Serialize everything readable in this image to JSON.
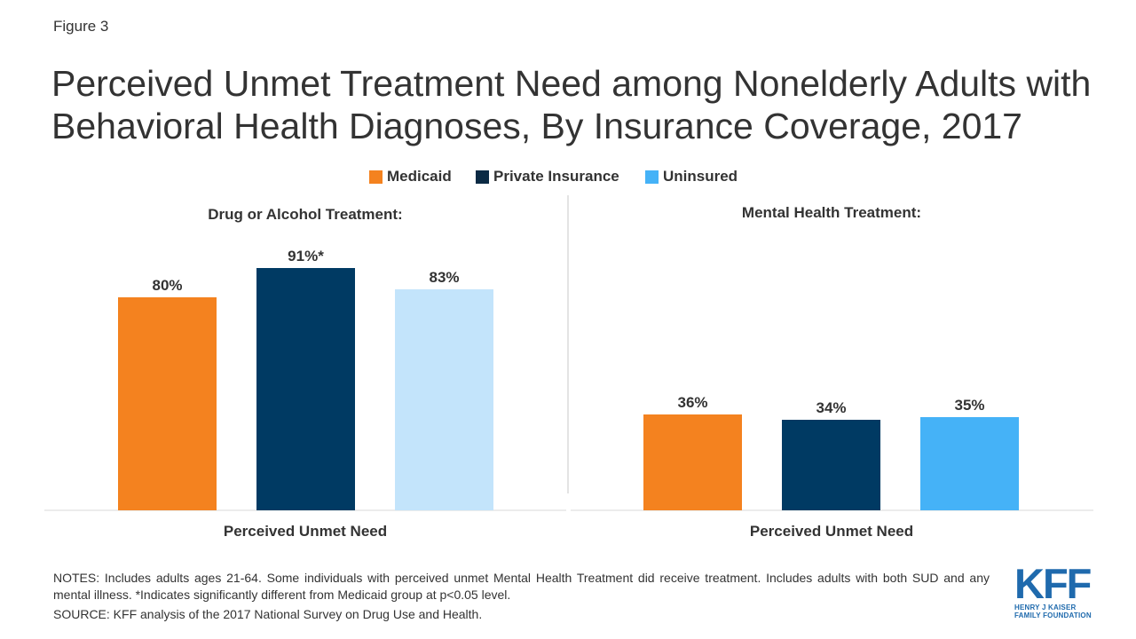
{
  "figure_label": "Figure 3",
  "title": "Perceived Unmet Treatment Need among Nonelderly Adults with Behavioral Health Diagnoses, By Insurance Coverage, 2017",
  "legend": [
    {
      "label": "Medicaid",
      "color": "#f4821f"
    },
    {
      "label": "Private Insurance",
      "color": "#0b2a44"
    },
    {
      "label": "Uninsured",
      "color": "#45b2f7"
    }
  ],
  "chart_data": [
    {
      "type": "bar",
      "title": "Drug or Alcohol Treatment:",
      "categories": [
        "Perceived Unmet Need"
      ],
      "xlabel": "Perceived Unmet Need",
      "series": [
        {
          "name": "Medicaid",
          "values": [
            80
          ],
          "label": "80%",
          "color": "#f4821f"
        },
        {
          "name": "Private Insurance",
          "values": [
            91
          ],
          "label": "91%*",
          "color": "#003a63"
        },
        {
          "name": "Uninsured",
          "values": [
            83
          ],
          "label": "83%",
          "color": "#c3e4fb"
        }
      ],
      "ylim": [
        0,
        100
      ]
    },
    {
      "type": "bar",
      "title": "Mental Health Treatment:",
      "categories": [
        "Perceived Unmet Need"
      ],
      "xlabel": "Perceived Unmet Need",
      "series": [
        {
          "name": "Medicaid",
          "values": [
            36
          ],
          "label": "36%",
          "color": "#f4821f"
        },
        {
          "name": "Private Insurance",
          "values": [
            34
          ],
          "label": "34%",
          "color": "#003a63"
        },
        {
          "name": "Uninsured",
          "values": [
            35
          ],
          "label": "35%",
          "color": "#45b2f7"
        }
      ],
      "ylim": [
        0,
        100
      ]
    }
  ],
  "notes": "NOTES: Includes adults ages 21-64. Some individuals with perceived unmet Mental Health Treatment did receive treatment. Includes adults with both SUD and any mental illness. *Indicates significantly different from Medicaid group at p<0.05 level.",
  "source": "SOURCE: KFF analysis of the 2017 National Survey on Drug Use and Health.",
  "logo": {
    "mark": "KFF",
    "line1": "HENRY J KAISER",
    "line2": "FAMILY FOUNDATION"
  }
}
